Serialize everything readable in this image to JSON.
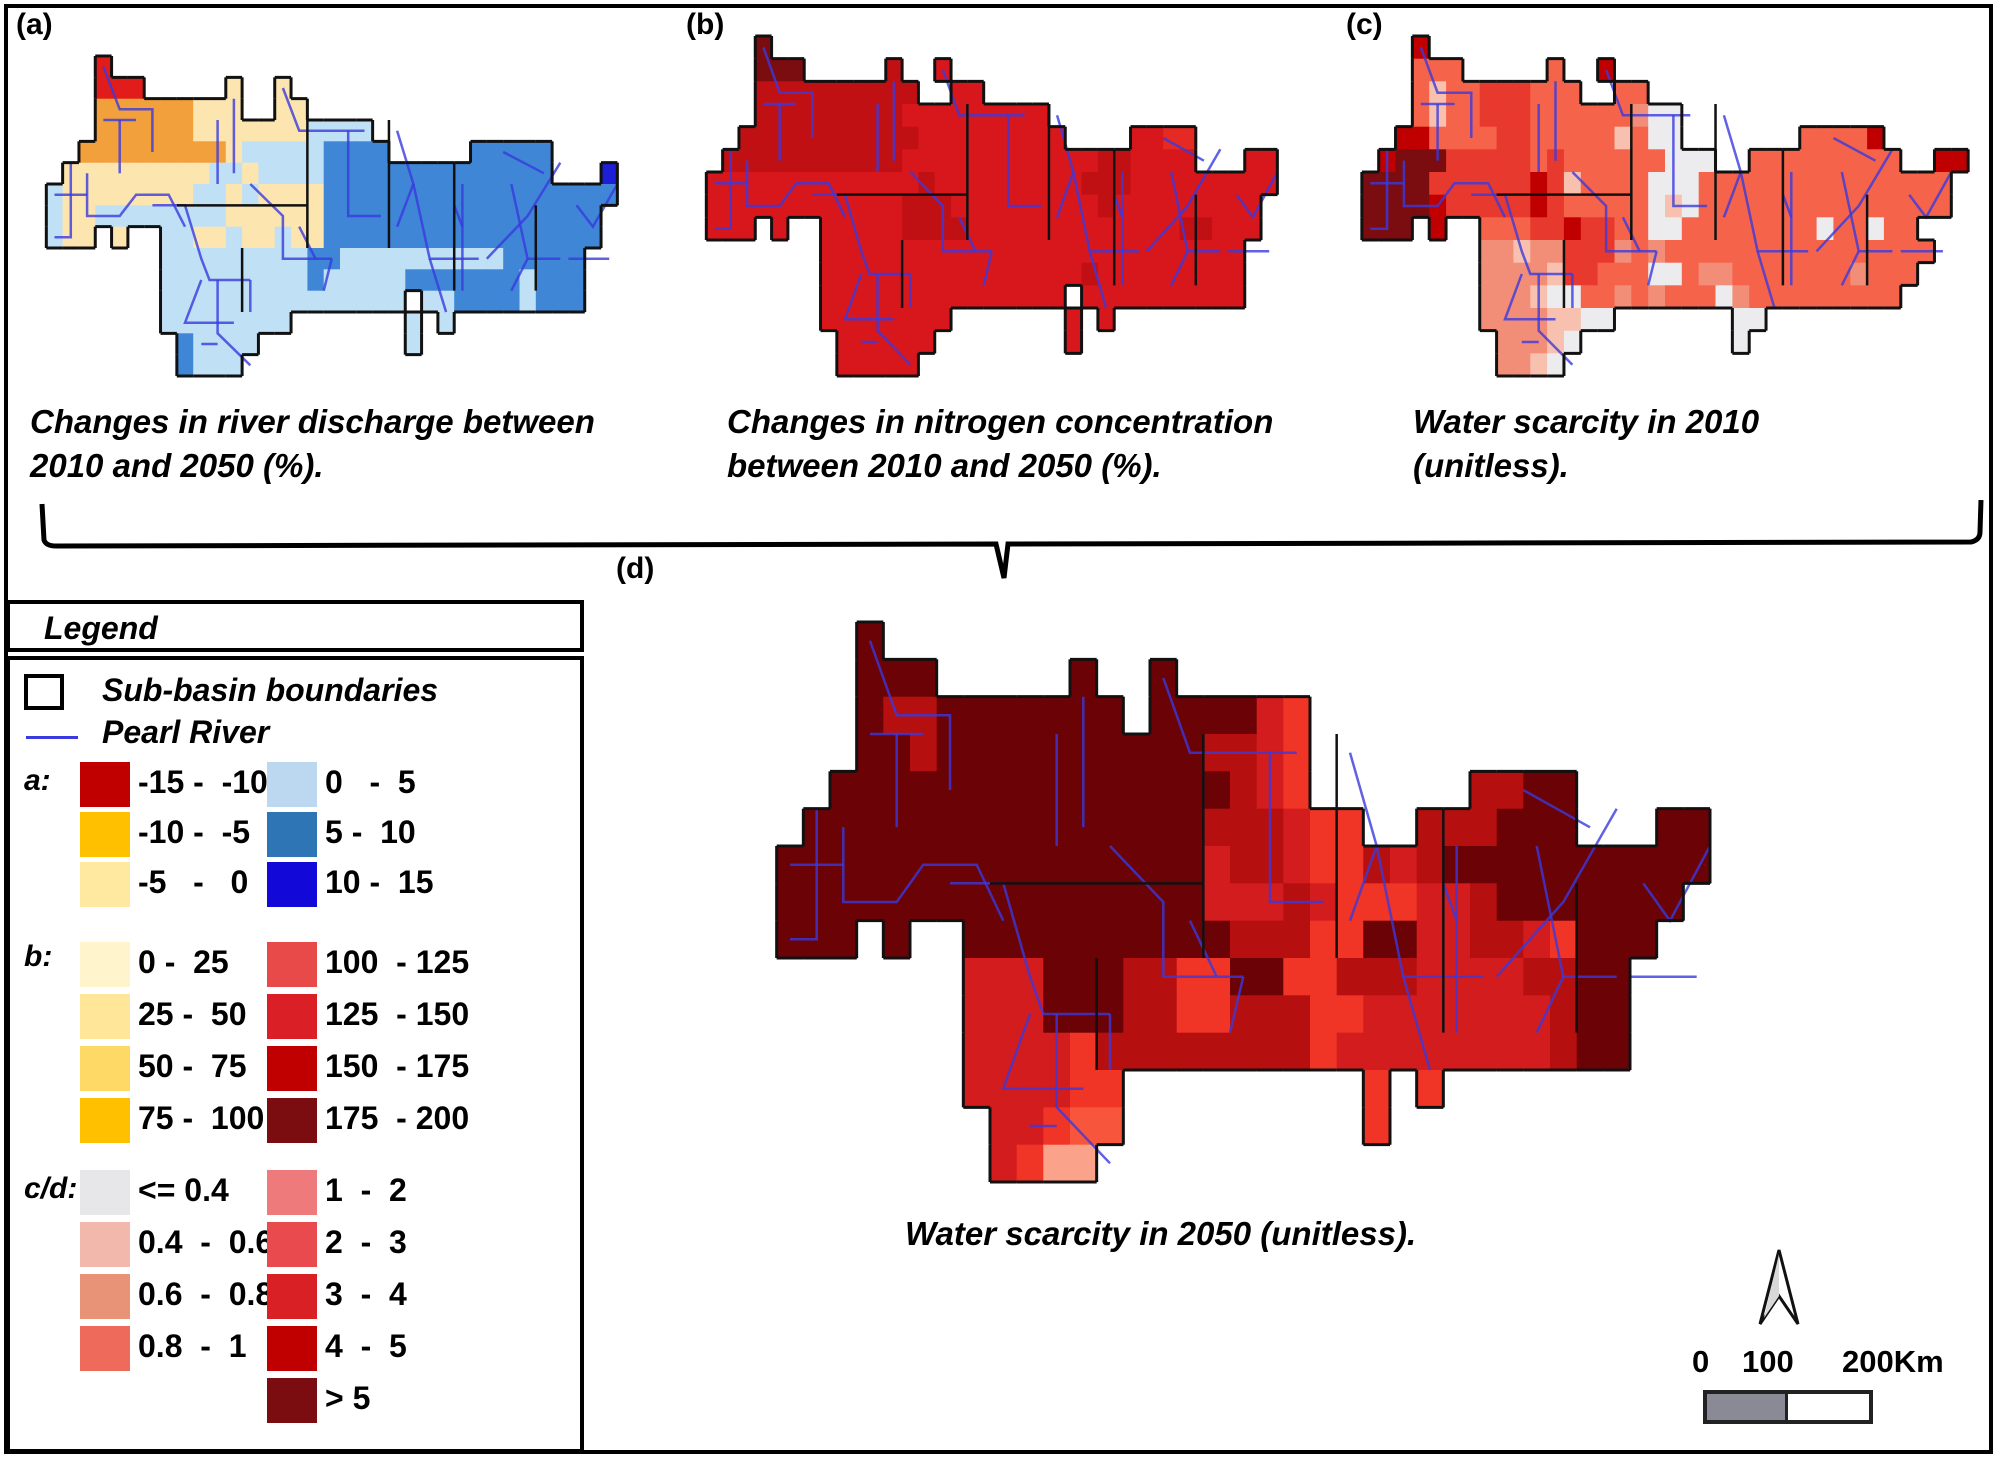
{
  "panels": {
    "a": {
      "label": "(a)",
      "caption": "Changes in river discharge between\n2010 and 2050 (%)."
    },
    "b": {
      "label": "(b)",
      "caption": "Changes in nitrogen concentration\nbetween 2010 and 2050 (%)."
    },
    "c": {
      "label": "(c)",
      "caption": "Water scarcity in 2010\n(unitless)."
    },
    "d": {
      "label": "(d)",
      "caption": "Water scarcity in 2050 (unitless)."
    }
  },
  "legend": {
    "title": "Legend",
    "boundary_label": "Sub-basin boundaries",
    "river_label": "Pearl River",
    "river_color": "#3a3adf",
    "groups": {
      "a": {
        "label": "a:",
        "classes": [
          {
            "range": "-15 -  -10",
            "color": "#c00000"
          },
          {
            "range": "-10 -  -5",
            "color": "#ffc000"
          },
          {
            "range": "-5   -   0",
            "color": "#ffe8a0"
          },
          {
            "range": "0   -  5",
            "color": "#bcd7f0"
          },
          {
            "range": "5 -  10",
            "color": "#2e75b6"
          },
          {
            "range": "10 -  15",
            "color": "#1208d8"
          }
        ]
      },
      "b": {
        "label": "b:",
        "classes": [
          {
            "range": "0 -  25",
            "color": "#fff4cc"
          },
          {
            "range": "25 -  50",
            "color": "#ffe699"
          },
          {
            "range": "50 -  75",
            "color": "#ffd966"
          },
          {
            "range": "75 -  100",
            "color": "#ffc000"
          },
          {
            "range": "100  - 125",
            "color": "#e84a4a"
          },
          {
            "range": "125  - 150",
            "color": "#da1f26"
          },
          {
            "range": "150  - 175",
            "color": "#c00000"
          },
          {
            "range": "175  - 200",
            "color": "#7b0c10"
          }
        ]
      },
      "cd": {
        "label": "c/d:",
        "classes": [
          {
            "range": "<= 0.4",
            "color": "#e7e6e8"
          },
          {
            "range": "0.4  -  0.6",
            "color": "#f2b8ac"
          },
          {
            "range": "0.6  -  0.8",
            "color": "#e89378"
          },
          {
            "range": "0.8  -  1",
            "color": "#ee6b5c"
          },
          {
            "range": "1  -  2",
            "color": "#ef7a7c"
          },
          {
            "range": "2  -  3",
            "color": "#e84a4e"
          },
          {
            "range": "3  -  4",
            "color": "#d92125"
          },
          {
            "range": "4  -  5",
            "color": "#c00000"
          },
          {
            "range": "> 5",
            "color": "#7b0c10"
          }
        ]
      }
    }
  },
  "scale": {
    "labels": [
      "0",
      "100",
      "200Km"
    ]
  },
  "maps": {
    "a": {
      "palette": {
        "r": "#e21b1b",
        "o": "#f2a03c",
        "y": "#fde5b0",
        "l": "#bfe0f5",
        "m": "#3f86d6",
        "d": "#1e1ed6"
      },
      "rows": [
        "....r.................................",
        "....rrr.....y..y......................",
        "....ooooooyyy..yy.....................",
        "....ooooooyyyyyyyllll.................",
        "...oooooooooylllllmmmm.....mmmmm......",
        "..yyyyyyyyyllyllllmmmmmmmmmmmmmm...d..",
        ".lyyyyyyyyllylyyyymmmmmmmmmmmmmmmmmm..",
        ".lyyllllllllyyyyyymmmmmmmmmmmmmmmmm...",
        ".lyy.y..llyylyylyymmmmmmmmmmmmmmmmm...",
        "........lllllllllmmllllllllllmmmmm....",
        "........lllllllllmlllllmmmmmmmlmmm....",
        "........lllllllllllllll.llmmmmlmmm....",
        "........llllllll.......l.l............",
        ".........mllll.........l..............",
        ".........mlll........................."
      ]
    },
    "b": {
      "palette": {
        "k": "#7b0c10",
        "r": "#d8171d",
        "s": "#c11014",
        "t": "#e52a24"
      },
      "rows": [
        "....k.................................",
        "....kkk.....s..r......................",
        "....ssssssssss..rr....................",
        "....sssssssssrrrrrrrrr................",
        "...sssssssssssrrrrrrrrr....rrtt.......",
        "..sssssssssssrrrrrrrrrrrrssrrrr...rr..",
        ".rrrrrrrrrrrrrsrrrrrrrrrsssrrrrrrrrr..",
        ".rrrrrrrrrrrrsssrrrrrrrrrsrrrrrrrrr...",
        ".rrr.r..rrrrrssssrrrrrrrrrrrrrssrrr...",
        "........rrrrrrrrrrrrrrrrrrrrrrrrrr....",
        "........rrrrrrrrrrrrrrrrsrrrrrrrrr....",
        "........rrrrrrrrrrrrrrr.rrrrrrrrrr....",
        "........rrrrrrrr.......r.r............",
        ".........rrrrrr........r..............",
        ".........rrrrr........................"
      ]
    },
    "c": {
      "palette": {
        "k": "#7b0c10",
        "d": "#c00000",
        "r": "#e8392e",
        "p": "#f5644a",
        "q": "#f28d78",
        "w": "#f8c0ae",
        "g": "#ececee"
      },
      "rows": [
        "....d.................................",
        "....ppp.....p..d......................",
        "....pwpprrrppp..pp....................",
        "....pwpprrrppppppqgg..................",
        "...ddpppprrpppppwpgg.......ppppd......",
        "..dkkkrrrrrprppppppggg..ppppppppp..dd.",
        ".kkkkrrrrrrdrwppppgggppppppppppppppp..",
        ".kkkkdrrrrrdrpppppgwgppppppppppppppp..",
        ".kkk.d..ppprrdrrppggppppppppgppgpp....",
        "........qqwqqrrrqpqpppppppppppppppp...",
        "........qqqqwrrpppggpqqpppppppqppp....",
        "........qqqwggppqpqpppgqppppppppp.....",
        "........qqqqwwgg.......gg.............",
        ".........qqqwg.........g..............",
        ".........qqwg........................."
      ]
    },
    "d": {
      "palette": {
        "k": "#6a0206",
        "s": "#b5100f",
        "r": "#d31c1e",
        "t": "#f03426",
        "u": "#f8563c",
        "v": "#fba28a"
      },
      "rows": [
        "....k..................................",
        "....kkk.....k..k.......................",
        "....ksskkkkkkk.kkkkrt..................",
        "....kkskkkkkkkkkkssrt..................",
        "...kkkkkkkkkkkkkkksrt......sskk........",
        "..kkkkkkkkkkkkkkksssrtt..ssskkk...kk...",
        ".kkkkkkkkkkkkkkkkrssrttsrskkkkkkkkkk...",
        ".kkkkkkkkkkkkkkkkrrrsrtttrrskkkkkkk....",
        ".kkk.k..kkkkkkkkkksssttkkrrssrtkkk.....",
        "........rrrkkkssttkkttsssrrrrsskk......",
        "........rrrkkkssttsssttrrrrrrrskk......",
        "........rrrrtsssssssstrrrrrrrrskk......",
        "........rrrrtt.........t.t.............",
        ".........rrtuu.........t...............",
        ".........rtvv.........................."
      ]
    }
  }
}
